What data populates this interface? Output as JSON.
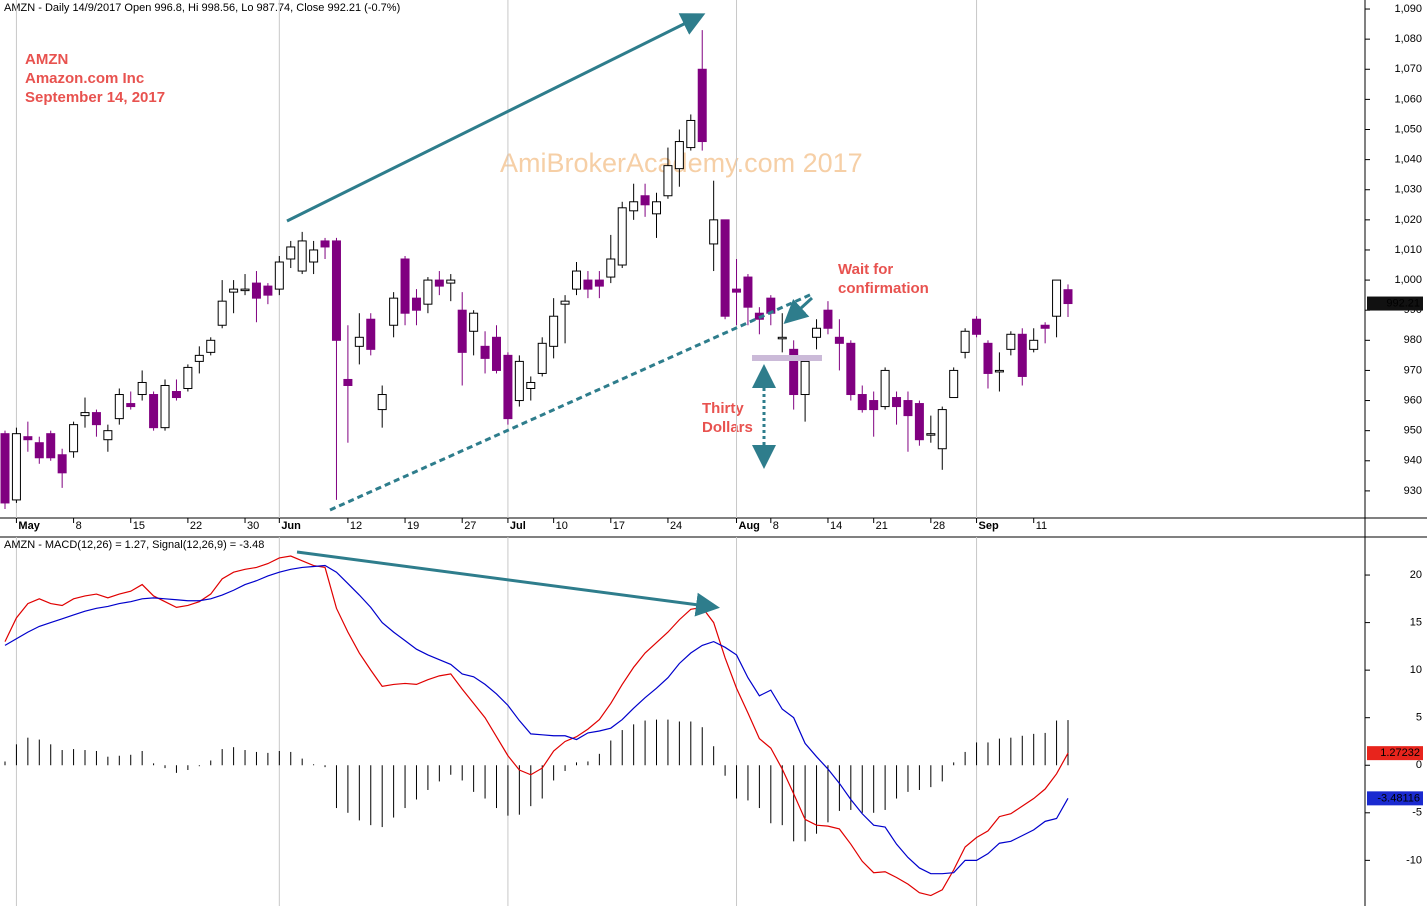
{
  "header": "AMZN - Daily 14/9/2017 Open 996.8, Hi 998.56, Lo 987.74, Close 992.21 (-0.7%)",
  "notes": {
    "symbol": "AMZN",
    "company": "Amazon.com Inc",
    "date": "September 14, 2017",
    "watermark": "AmiBrokerAcademy.com  2017",
    "wait": [
      "Wait for",
      "confirmation"
    ],
    "thirty": [
      "Thirty",
      "Dollars"
    ]
  },
  "chart_data": [
    {
      "type": "candlestick",
      "up_color": "#ffffff",
      "down_color": "#800080",
      "categories": [
        null,
        "May",
        null,
        null,
        null,
        null,
        "8",
        null,
        null,
        null,
        null,
        "15",
        null,
        null,
        null,
        null,
        "22",
        null,
        null,
        null,
        null,
        "30",
        null,
        null,
        "Jun",
        null,
        null,
        null,
        null,
        null,
        "12",
        null,
        null,
        null,
        null,
        "19",
        null,
        null,
        null,
        null,
        "27",
        null,
        null,
        null,
        "Jul",
        null,
        null,
        null,
        "10",
        null,
        null,
        null,
        null,
        "17",
        null,
        null,
        null,
        null,
        "24",
        null,
        null,
        null,
        null,
        null,
        "Aug",
        null,
        null,
        "8",
        null,
        null,
        null,
        null,
        "14",
        null,
        null,
        null,
        "21",
        null,
        null,
        null,
        null,
        "28",
        null,
        null,
        null,
        "Sep",
        null,
        null,
        null,
        null,
        "11",
        null,
        null,
        null
      ],
      "open": [
        949,
        927,
        948,
        946,
        949,
        942,
        943,
        955,
        956,
        947,
        954,
        959,
        962,
        962,
        951,
        963,
        964,
        973,
        976,
        985,
        996,
        997,
        999,
        998,
        997,
        1007,
        1003,
        1006,
        1013,
        1013,
        967,
        978,
        987,
        957,
        985,
        1007,
        994,
        992,
        1000,
        999,
        990,
        983,
        978,
        981,
        975,
        960,
        964,
        969,
        978,
        992,
        997,
        1000,
        1000,
        1001,
        1005,
        1023,
        1028,
        1022,
        1028,
        1037,
        1044,
        1070,
        1012,
        1020,
        997,
        1001,
        989,
        994,
        981,
        977,
        962,
        981,
        990,
        981,
        979,
        962,
        960,
        958,
        961,
        960,
        959,
        949,
        944,
        961,
        976,
        987,
        979,
        970,
        977,
        982,
        977,
        985,
        988,
        996.8
      ],
      "high": [
        950,
        951,
        953,
        948,
        950,
        944,
        953,
        961,
        957,
        952,
        964,
        963,
        970,
        963,
        967,
        967,
        972,
        978,
        981,
        1000,
        1000,
        1002,
        1003,
        999,
        1008,
        1013,
        1016,
        1013,
        1014,
        1014,
        985,
        989,
        989,
        965,
        996,
        1008,
        997,
        1001,
        1003,
        1002,
        996,
        990,
        983,
        985,
        976,
        975,
        968,
        981,
        994,
        995,
        1006,
        1003,
        1003,
        1015,
        1026,
        1032,
        1032,
        1029,
        1044,
        1050,
        1055,
        1083,
        1033,
        1020,
        1007,
        1002,
        991,
        995,
        989,
        980,
        975,
        987,
        993,
        987,
        980,
        965,
        963,
        971,
        963,
        963,
        960,
        955,
        958,
        971,
        984,
        988,
        980,
        976,
        983,
        984,
        984,
        986,
        1000,
        998.56
      ],
      "low": [
        924,
        926,
        943,
        939,
        940,
        931,
        941,
        951,
        948,
        943,
        952,
        957,
        960,
        950,
        950,
        960,
        963,
        969,
        975,
        984,
        989,
        995,
        986,
        992,
        995,
        1004,
        1002,
        1002,
        1007,
        927,
        946,
        972,
        975,
        951,
        981,
        985,
        985,
        989,
        995,
        993,
        965,
        975,
        969,
        969,
        952,
        958,
        960,
        968,
        974,
        979,
        995,
        994,
        994,
        999,
        1004,
        1020,
        1021,
        1014,
        1027,
        1031,
        1043,
        1043,
        1003,
        987,
        985,
        985,
        982,
        985,
        976,
        957,
        953,
        977,
        982,
        970,
        960,
        956,
        948,
        957,
        952,
        943,
        945,
        946,
        937,
        961,
        974,
        981,
        964,
        963,
        975,
        965,
        976,
        979,
        981,
        987.74
      ],
      "close": [
        926,
        949,
        947,
        941,
        941,
        936,
        952,
        956,
        952,
        950,
        962,
        958,
        966,
        951,
        965,
        961,
        971,
        975,
        980,
        993,
        997,
        997,
        994,
        995,
        1006,
        1011,
        1013,
        1010,
        1011,
        980,
        965,
        981,
        977,
        962,
        994,
        989,
        990,
        1000,
        998,
        1000,
        976,
        989,
        974,
        970,
        954,
        973,
        966,
        979,
        988,
        993,
        1003,
        997,
        998,
        1007,
        1024,
        1026,
        1025,
        1026,
        1038,
        1046,
        1053,
        1046,
        1020,
        988,
        996,
        991,
        987,
        989,
        981,
        962,
        973,
        984,
        984,
        979,
        962,
        957,
        957,
        970,
        958,
        955,
        947,
        949,
        957,
        970,
        983,
        982,
        969,
        970,
        982,
        968,
        980,
        984,
        1000,
        992.21
      ],
      "ylim": [
        921,
        1093
      ],
      "yticks": [
        930,
        940,
        950,
        960,
        970,
        980,
        990,
        {
          "value": 1000,
          "label": "1,000"
        },
        {
          "value": 1010,
          "label": "1,010"
        },
        {
          "value": 1020,
          "label": "1,020"
        },
        {
          "value": 1030,
          "label": "1,030"
        },
        {
          "value": 1040,
          "label": "1,040"
        },
        {
          "value": 1050,
          "label": "1,050"
        },
        {
          "value": 1060,
          "label": "1,060"
        },
        {
          "value": 1070,
          "label": "1,070"
        },
        {
          "value": 1080,
          "label": "1,080"
        },
        {
          "value": 1090,
          "label": "1,090"
        }
      ]
    },
    {
      "type": "line",
      "title": [
        "AMZN - ",
        "MACD(12,26) = 1.27",
        ", ",
        "Signal(12,26,9) = -3.48"
      ],
      "series": [
        {
          "color": "#e00000",
          "values": [
            13.0,
            15.5,
            17.0,
            17.5,
            17.0,
            16.8,
            17.5,
            17.8,
            18.0,
            17.6,
            18.0,
            18.3,
            19.0,
            17.8,
            17.2,
            16.6,
            16.8,
            17.2,
            18.0,
            19.6,
            20.3,
            20.6,
            20.8,
            21.2,
            21.8,
            22.0,
            21.5,
            21.0,
            20.8,
            16.5,
            14.0,
            11.8,
            10.0,
            8.3,
            8.5,
            8.6,
            8.5,
            9.0,
            9.4,
            9.6,
            8.0,
            6.5,
            5.0,
            3.0,
            1.0,
            -0.5,
            -1.0,
            -0.3,
            1.5,
            2.5,
            3.0,
            3.8,
            4.8,
            6.5,
            8.5,
            10.3,
            11.8,
            12.9,
            14.0,
            15.3,
            16.4,
            16.6,
            15.0,
            11.3,
            8.1,
            5.5,
            2.8,
            1.8,
            -0.4,
            -3.0,
            -5.7,
            -6.3,
            -6.4,
            -6.7,
            -8.3,
            -10.1,
            -11.3,
            -11.2,
            -11.8,
            -12.5,
            -13.4,
            -13.7,
            -13.1,
            -11.0,
            -8.6,
            -7.6,
            -6.9,
            -5.4,
            -5.1,
            -4.3,
            -3.5,
            -2.5,
            -0.9,
            1.27232
          ]
        },
        {
          "color": "#0000cc",
          "values": [
            12.6,
            13.3,
            14.0,
            14.6,
            15.0,
            15.4,
            15.8,
            16.2,
            16.5,
            16.7,
            17.0,
            17.2,
            17.5,
            17.6,
            17.5,
            17.4,
            17.3,
            17.3,
            17.5,
            17.9,
            18.4,
            19.0,
            19.4,
            19.9,
            20.3,
            20.6,
            20.8,
            20.9,
            21.0,
            20.3,
            19.1,
            17.9,
            16.6,
            15.0,
            14.0,
            13.1,
            12.2,
            11.6,
            11.1,
            10.6,
            9.6,
            9.3,
            8.5,
            7.5,
            6.3,
            4.7,
            3.3,
            3.2,
            3.1,
            3.1,
            2.7,
            3.4,
            3.6,
            3.9,
            4.8,
            6.0,
            7.1,
            8.1,
            9.2,
            10.7,
            11.8,
            12.6,
            13.0,
            12.4,
            11.6,
            9.2,
            7.3,
            7.9,
            5.9,
            5.0,
            2.3,
            0.9,
            -0.4,
            -1.9,
            -3.6,
            -5.1,
            -6.3,
            -6.5,
            -8.3,
            -9.7,
            -10.8,
            -11.4,
            -11.4,
            -11.3,
            -10.0,
            -10.0,
            -9.3,
            -8.2,
            -8.0,
            -7.4,
            -6.8,
            -5.9,
            -5.6,
            -3.48116
          ]
        },
        {
          "type": "bar",
          "color": "#000000",
          "values": [
            0.4,
            2.2,
            2.9,
            2.7,
            2.2,
            1.6,
            1.7,
            1.6,
            1.5,
            0.9,
            1.0,
            1.1,
            1.5,
            0.2,
            -0.3,
            -0.8,
            -0.5,
            -0.1,
            0.5,
            1.7,
            1.9,
            1.6,
            1.4,
            1.3,
            1.5,
            1.4,
            0.7,
            0.1,
            -0.2,
            -4.5,
            -5.0,
            -5.8,
            -6.3,
            -6.5,
            -5.5,
            -4.5,
            -3.6,
            -2.6,
            -1.7,
            -1.0,
            -1.6,
            -2.8,
            -3.5,
            -4.5,
            -5.3,
            -5.2,
            -4.3,
            -3.5,
            -1.6,
            -0.6,
            0.3,
            0.4,
            1.2,
            2.6,
            3.7,
            4.3,
            4.7,
            4.8,
            4.8,
            4.6,
            4.6,
            4.0,
            2.0,
            -1.1,
            -3.5,
            -3.7,
            -4.5,
            -6.1,
            -6.3,
            -8.0,
            -8.0,
            -7.2,
            -6.0,
            -4.8,
            -4.7,
            -5.0,
            -5.0,
            -4.7,
            -3.5,
            -2.8,
            -2.6,
            -2.3,
            -1.7,
            0.3,
            1.4,
            2.4,
            2.4,
            2.8,
            2.9,
            3.1,
            3.3,
            3.4,
            4.7,
            4.75
          ]
        }
      ],
      "ylim": [
        -14.8,
        24
      ],
      "yticks": [
        -10,
        -5,
        0,
        5,
        10,
        15,
        20
      ]
    }
  ]
}
